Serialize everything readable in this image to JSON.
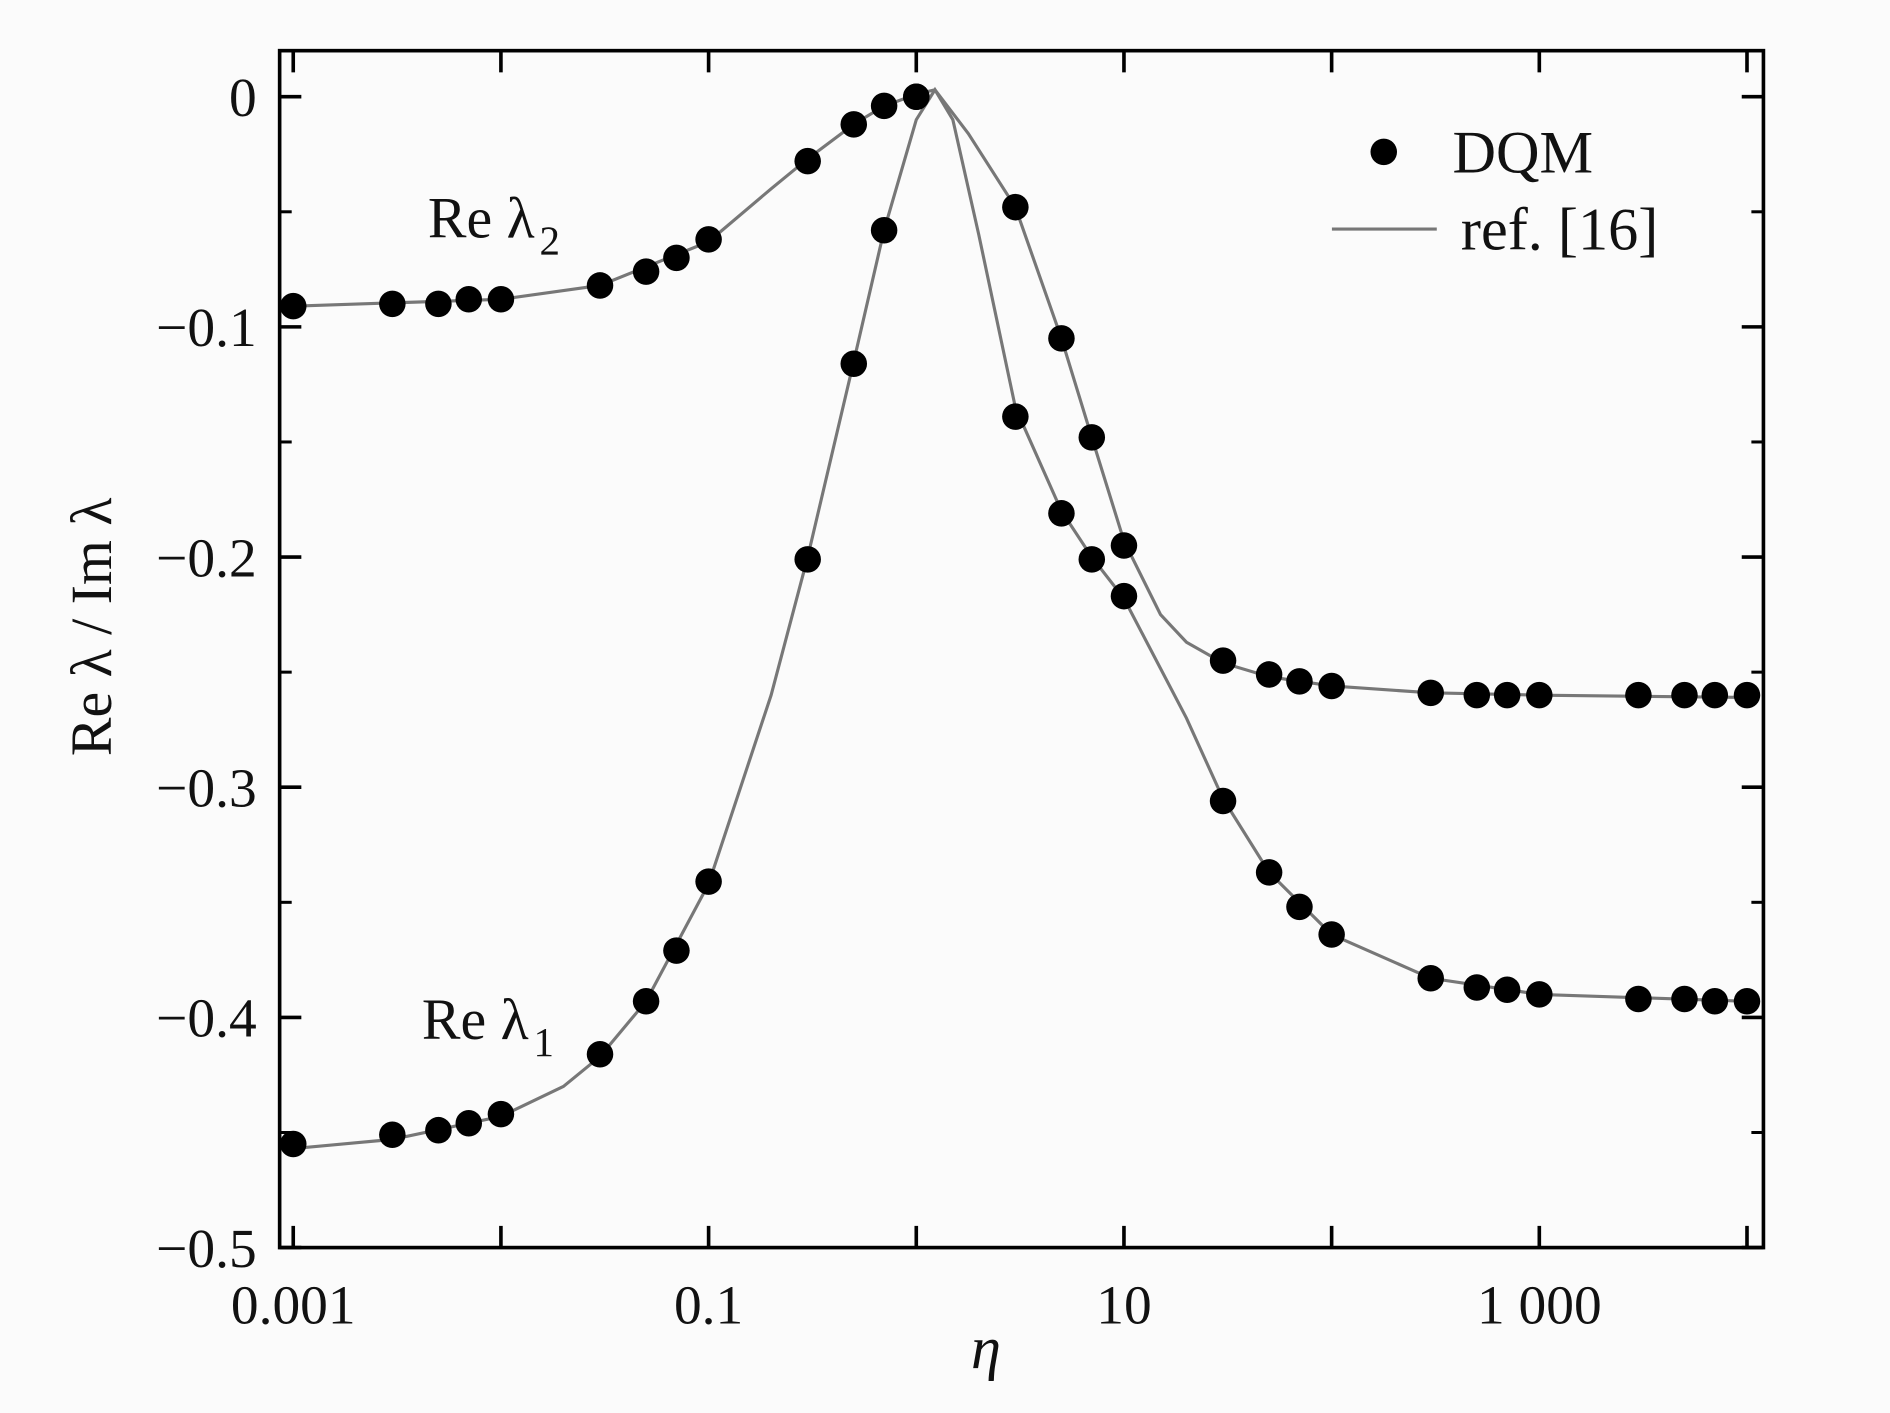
{
  "chart_data": {
    "type": "scatter",
    "xlabel": "η",
    "ylabel": "Re λ / Im λ",
    "xscale": "log",
    "xlim": [
      0.00086,
      12000
    ],
    "ylim": [
      -0.5,
      0.02
    ],
    "xticks": [
      0.001,
      0.1,
      10,
      {
        "value": 1000,
        "label": "1 000"
      }
    ],
    "xticks_unlabeled": [
      0.01,
      1,
      100,
      10000
    ],
    "yticks": [
      0,
      {
        "value": -0.1,
        "label": "−0.1"
      },
      {
        "value": -0.2,
        "label": "−0.2"
      },
      {
        "value": -0.3,
        "label": "−0.3"
      },
      {
        "value": -0.4,
        "label": "−0.4"
      },
      {
        "value": -0.5,
        "label": "−0.5"
      }
    ],
    "yticks_minor": [
      -0.05,
      -0.15,
      -0.25,
      -0.35,
      -0.45
    ],
    "legend_position": "top right",
    "series": [
      {
        "name": "DQM",
        "color": "#000000",
        "marker": "dot",
        "curves": [
          {
            "x": [
              0.001,
              0.003,
              0.005,
              0.007,
              0.01,
              0.03,
              0.05,
              0.07,
              0.1,
              0.3,
              0.5,
              0.7,
              1,
              3,
              5,
              7,
              10,
              30,
              50,
              70,
              100,
              300,
              500,
              700,
              1000,
              3000,
              5000,
              7000,
              10000
            ],
            "values": [
              -0.455,
              -0.451,
              -0.449,
              -0.446,
              -0.442,
              -0.416,
              -0.393,
              -0.371,
              -0.341,
              -0.201,
              -0.116,
              -0.058,
              0,
              -0.139,
              -0.181,
              -0.201,
              -0.217,
              -0.306,
              -0.337,
              -0.352,
              -0.364,
              -0.383,
              -0.387,
              -0.388,
              -0.39,
              -0.392,
              -0.392,
              -0.393,
              -0.393
            ]
          },
          {
            "x": [
              0.001,
              0.003,
              0.005,
              0.007,
              0.01,
              0.03,
              0.05,
              0.07,
              0.1,
              0.3,
              0.5,
              0.7,
              1,
              3,
              5,
              7,
              10,
              30,
              50,
              70,
              100,
              300,
              500,
              700,
              1000,
              3000,
              5000,
              7000,
              10000
            ],
            "values": [
              -0.091,
              -0.09,
              -0.09,
              -0.088,
              -0.088,
              -0.082,
              -0.076,
              -0.07,
              -0.062,
              -0.028,
              -0.012,
              -0.004,
              0,
              -0.048,
              -0.105,
              -0.148,
              -0.195,
              -0.245,
              -0.251,
              -0.254,
              -0.256,
              -0.259,
              -0.26,
              -0.26,
              -0.26,
              -0.26,
              -0.26,
              -0.26,
              -0.26
            ]
          }
        ]
      },
      {
        "name": "ref. [16]",
        "color": "#777777",
        "marker": "line",
        "curves": [
          {
            "x": [
              0.001,
              0.003,
              0.01,
              0.02,
              0.03,
              0.05,
              0.1,
              0.2,
              0.3,
              0.5,
              0.7,
              1,
              1.23,
              1.5,
              2,
              3,
              5,
              7,
              10,
              20,
              30,
              50,
              100,
              300,
              1000,
              10000
            ],
            "values": [
              -0.457,
              -0.453,
              -0.443,
              -0.43,
              -0.417,
              -0.393,
              -0.342,
              -0.26,
              -0.2,
              -0.115,
              -0.058,
              -0.01,
              0.003,
              -0.01,
              -0.06,
              -0.135,
              -0.18,
              -0.2,
              -0.218,
              -0.27,
              -0.305,
              -0.337,
              -0.364,
              -0.383,
              -0.39,
              -0.393
            ]
          },
          {
            "x": [
              0.001,
              0.01,
              0.03,
              0.1,
              0.2,
              0.3,
              0.5,
              0.7,
              1,
              1.23,
              1.78,
              3,
              5,
              7,
              10,
              15,
              20,
              30,
              50,
              100,
              300,
              1000,
              10000
            ],
            "values": [
              -0.091,
              -0.088,
              -0.082,
              -0.063,
              -0.04,
              -0.027,
              -0.012,
              -0.004,
              0.001,
              0.003,
              -0.016,
              -0.048,
              -0.105,
              -0.148,
              -0.193,
              -0.225,
              -0.237,
              -0.246,
              -0.252,
              -0.256,
              -0.259,
              -0.26,
              -0.261
            ]
          }
        ]
      }
    ],
    "annotations": [
      {
        "text": "Re λ",
        "subscript": "1"
      },
      {
        "text": "Re λ",
        "subscript": "2"
      }
    ]
  }
}
